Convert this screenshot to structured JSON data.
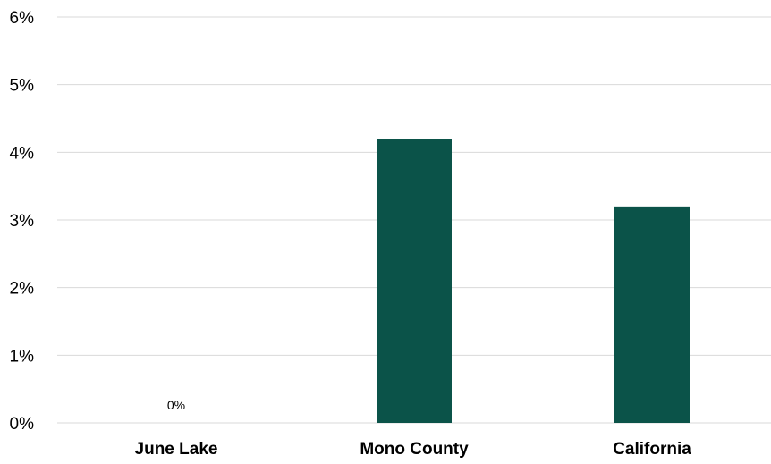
{
  "chart_data": {
    "type": "bar",
    "categories": [
      "June Lake",
      "Mono County",
      "California"
    ],
    "values": [
      0,
      4.2,
      3.2
    ],
    "value_format": "percent",
    "data_labels": [
      "0%",
      "",
      ""
    ],
    "ylim": [
      0,
      6
    ],
    "y_ticks": [
      "0%",
      "1%",
      "2%",
      "3%",
      "4%",
      "5%",
      "6%"
    ],
    "grid": true,
    "legend": "none",
    "bar_color": "#0b5349",
    "title": "",
    "xlabel": "",
    "ylabel": ""
  }
}
